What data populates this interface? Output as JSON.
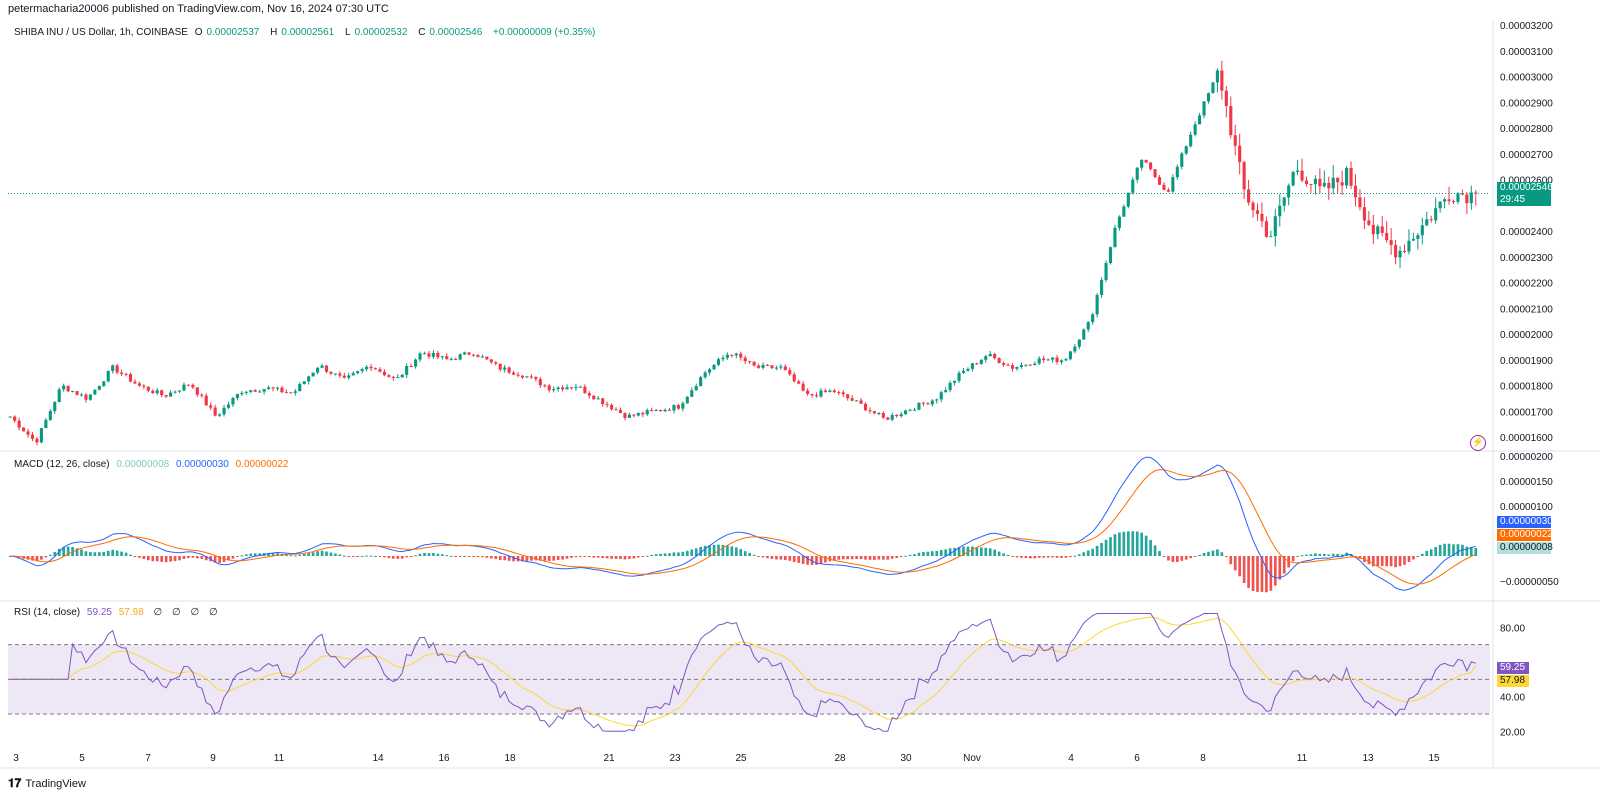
{
  "header": {
    "published": "petermacharia20006 published on TradingView.com, Nov 16, 2024 07:30 UTC"
  },
  "main_legend": {
    "symbol": "SHIBA INU / US Dollar, 1h, COINBASE",
    "o_label": "O",
    "o_value": "0.00002537",
    "h_label": "H",
    "h_value": "0.00002561",
    "l_label": "L",
    "l_value": "0.00002532",
    "c_label": "C",
    "c_value": "0.00002546",
    "change": "+0.00000009 (+0.35%)"
  },
  "price_axis": {
    "ticks": [
      "0.00003200",
      "0.00003100",
      "0.00003000",
      "0.00002900",
      "0.00002800",
      "0.00002700",
      "0.00002600",
      "0.00002400",
      "0.00002300",
      "0.00002200",
      "0.00002100",
      "0.00002000",
      "0.00001900",
      "0.00001800",
      "0.00001700",
      "0.00001600"
    ],
    "tick_values": [
      3.2e-05,
      3.1e-05,
      3e-05,
      2.9e-05,
      2.8e-05,
      2.7e-05,
      2.6e-05,
      2.4e-05,
      2.3e-05,
      2.2e-05,
      2.1e-05,
      2e-05,
      1.9e-05,
      1.8e-05,
      1.7e-05,
      1.6e-05
    ],
    "current_price": "0.00002546",
    "countdown": "29:45",
    "current_value": 2.546e-05
  },
  "macd_legend": {
    "label": "MACD (12, 26, close)",
    "hist": "0.00000008",
    "macd": "0.00000030",
    "signal": "0.00000022"
  },
  "macd_axis": {
    "ticks": [
      "0.00000200",
      "0.00000150",
      "0.00000100",
      "−0.00000050"
    ],
    "tick_values": [
      2e-06,
      1.5e-06,
      1e-06,
      -5e-07
    ],
    "tag_macd": "0.00000030",
    "tag_signal": "0.00000022",
    "tag_hist": "0.00000008"
  },
  "rsi_legend": {
    "label": "RSI (14, close)",
    "rsi": "59.25",
    "ma": "57.98",
    "extras": [
      "∅",
      "∅",
      "∅",
      "∅"
    ]
  },
  "rsi_axis": {
    "ticks": [
      "80.00",
      "40.00",
      "20.00"
    ],
    "tick_values": [
      80,
      40,
      20
    ],
    "tag_rsi": "59.25",
    "tag_ma": "57.98"
  },
  "time_axis": {
    "labels": [
      "3",
      "5",
      "7",
      "9",
      "11",
      "14",
      "16",
      "18",
      "21",
      "23",
      "25",
      "28",
      "30",
      "Nov",
      "4",
      "6",
      "8",
      "11",
      "13",
      "15"
    ]
  },
  "footer": {
    "brand": "TradingView"
  },
  "colors": {
    "up": "#089981",
    "down": "#f23645",
    "macd": "#2962ff",
    "signal": "#ff6d00",
    "hist_up": "#26a69a",
    "hist_down": "#ef5350",
    "rsi": "#7e57c2",
    "rsi_ma": "#fdd835",
    "rsi_band": "#ede7f6"
  },
  "chart_data": {
    "type": "candlestick",
    "title": "SHIBA INU / US Dollar, 1h, COINBASE",
    "x_labels": [
      "3",
      "5",
      "7",
      "9",
      "11",
      "14",
      "16",
      "18",
      "21",
      "23",
      "25",
      "28",
      "30",
      "Nov",
      "4",
      "6",
      "8",
      "11",
      "13",
      "15"
    ],
    "price_keypoints": [
      1.68e-05,
      1.58e-05,
      1.8e-05,
      1.75e-05,
      1.87e-05,
      1.8e-05,
      1.76e-05,
      1.81e-05,
      1.68e-05,
      1.78e-05,
      1.79e-05,
      1.77e-05,
      1.88e-05,
      1.82e-05,
      1.88e-05,
      1.82e-05,
      1.93e-05,
      1.9e-05,
      1.93e-05,
      1.87e-05,
      1.84e-05,
      1.79e-05,
      1.8e-05,
      1.74e-05,
      1.68e-05,
      1.7e-05,
      1.72e-05,
      1.85e-05,
      1.93e-05,
      1.87e-05,
      1.87e-05,
      1.76e-05,
      1.78e-05,
      1.73e-05,
      1.67e-05,
      1.71e-05,
      1.75e-05,
      1.85e-05,
      1.92e-05,
      1.87e-05,
      1.9e-05,
      1.9e-05,
      2.05e-05,
      2.42e-05,
      2.68e-05,
      2.55e-05,
      2.8e-05,
      3.02e-05,
      2.55e-05,
      2.38e-05,
      2.65e-05,
      2.55e-05,
      2.62e-05,
      2.4e-05,
      2.32e-05,
      2.43e-05,
      2.55e-05,
      2.54e-05
    ],
    "ylim": [
      1.55e-05,
      3.22e-05
    ],
    "ohlc_last": {
      "open": 2.537e-05,
      "high": 2.561e-05,
      "low": 2.532e-05,
      "close": 2.546e-05
    },
    "macd": {
      "macd": 3e-07,
      "signal": 2.2e-07,
      "hist": 8e-08
    },
    "rsi": {
      "value": 59.25,
      "ma": 57.98,
      "upper": 70,
      "lower": 30
    }
  }
}
